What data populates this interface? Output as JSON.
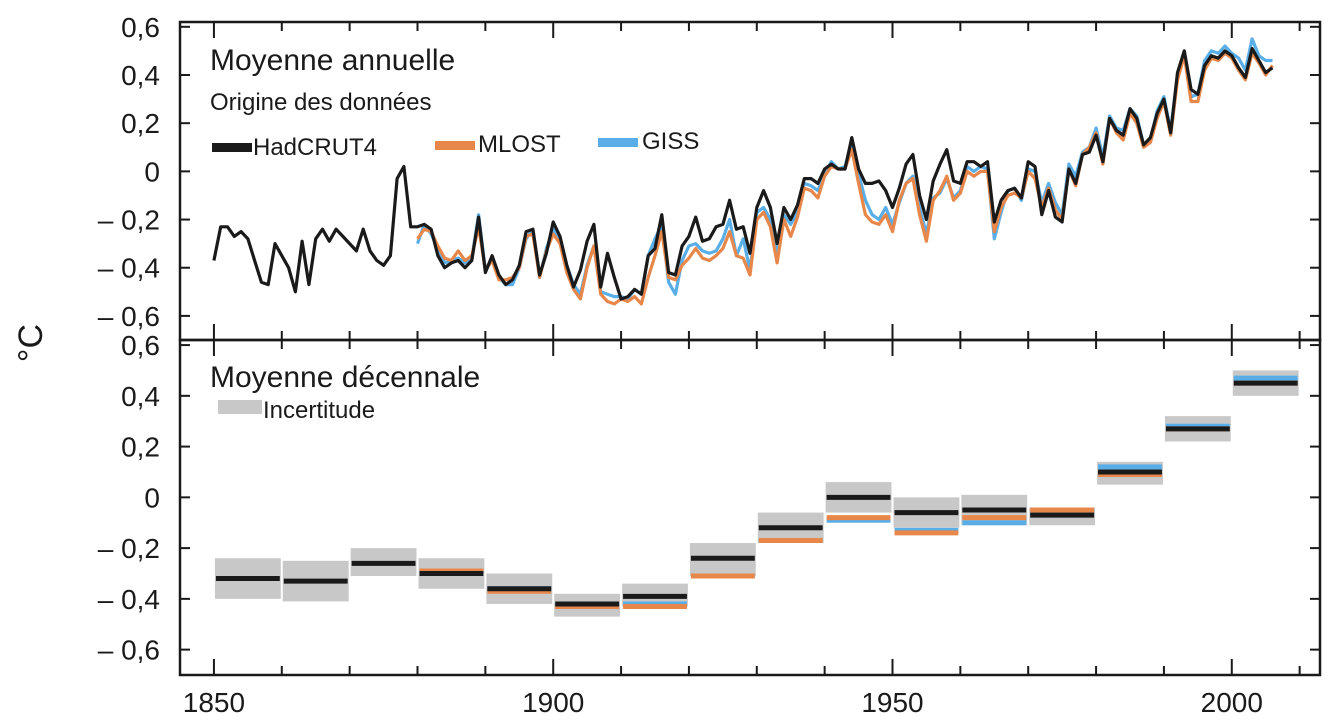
{
  "colors": {
    "hadcrut4": "#1a1a1a",
    "mlost": "#e8874a",
    "giss": "#5aaee8",
    "uncertainty": "#c8c8c8"
  },
  "chart_data": {
    "type": "line",
    "ylabel": "°C",
    "xlim": [
      1845,
      2013
    ],
    "xticks": [
      "1850",
      "1900",
      "1950",
      "2000"
    ],
    "grid": false,
    "panels": [
      {
        "title": "Moyenne annuelle",
        "legend_title": "Origine des données",
        "legend_placement": "top-left",
        "ylim": [
          -0.7,
          0.62
        ],
        "yticks": [
          "0,6",
          "0,4",
          "0,2",
          "0",
          "– 0,2",
          "– 0,4",
          "– 0,6"
        ],
        "series": [
          {
            "name": "HadCRUT4",
            "x_start": 1850,
            "values": [
              -0.37,
              -0.23,
              -0.23,
              -0.27,
              -0.25,
              -0.28,
              -0.37,
              -0.46,
              -0.47,
              -0.3,
              -0.35,
              -0.4,
              -0.5,
              -0.29,
              -0.47,
              -0.28,
              -0.24,
              -0.29,
              -0.24,
              -0.27,
              -0.3,
              -0.33,
              -0.24,
              -0.33,
              -0.37,
              -0.39,
              -0.35,
              -0.03,
              0.02,
              -0.23,
              -0.23,
              -0.22,
              -0.24,
              -0.35,
              -0.4,
              -0.38,
              -0.37,
              -0.4,
              -0.37,
              -0.19,
              -0.42,
              -0.35,
              -0.43,
              -0.47,
              -0.45,
              -0.39,
              -0.25,
              -0.24,
              -0.43,
              -0.34,
              -0.21,
              -0.27,
              -0.39,
              -0.48,
              -0.41,
              -0.29,
              -0.22,
              -0.48,
              -0.34,
              -0.44,
              -0.53,
              -0.52,
              -0.49,
              -0.51,
              -0.35,
              -0.32,
              -0.18,
              -0.42,
              -0.43,
              -0.31,
              -0.27,
              -0.19,
              -0.29,
              -0.28,
              -0.23,
              -0.22,
              -0.12,
              -0.24,
              -0.23,
              -0.34,
              -0.15,
              -0.08,
              -0.15,
              -0.3,
              -0.15,
              -0.2,
              -0.14,
              -0.03,
              -0.03,
              -0.05,
              0.01,
              0.03,
              0.01,
              0.01,
              0.14,
              0.01,
              -0.05,
              -0.05,
              -0.04,
              -0.08,
              -0.15,
              -0.07,
              0.03,
              0.07,
              -0.1,
              -0.2,
              -0.04,
              0.03,
              0.09,
              -0.04,
              -0.05,
              0.04,
              0.04,
              0.02,
              0.04,
              -0.21,
              -0.12,
              -0.08,
              -0.07,
              -0.11,
              0.04,
              0.02,
              -0.18,
              -0.08,
              -0.19,
              -0.21,
              0.01,
              -0.05,
              0.07,
              0.08,
              0.15,
              0.04,
              0.22,
              0.17,
              0.15,
              0.26,
              0.22,
              0.11,
              0.14,
              0.24,
              0.3,
              0.16,
              0.41,
              0.5,
              0.34,
              0.32,
              0.44,
              0.48,
              0.47,
              0.5,
              0.48,
              0.43,
              0.39,
              0.51,
              0.46,
              0.41,
              0.43
            ]
          },
          {
            "name": "MLOST",
            "x_start": 1880,
            "values": [
              -0.28,
              -0.24,
              -0.25,
              -0.31,
              -0.36,
              -0.37,
              -0.33,
              -0.37,
              -0.35,
              -0.23,
              -0.41,
              -0.37,
              -0.45,
              -0.45,
              -0.44,
              -0.4,
              -0.27,
              -0.26,
              -0.44,
              -0.33,
              -0.26,
              -0.3,
              -0.42,
              -0.49,
              -0.53,
              -0.4,
              -0.31,
              -0.51,
              -0.54,
              -0.55,
              -0.53,
              -0.54,
              -0.52,
              -0.55,
              -0.44,
              -0.35,
              -0.25,
              -0.44,
              -0.45,
              -0.39,
              -0.36,
              -0.32,
              -0.36,
              -0.37,
              -0.35,
              -0.32,
              -0.25,
              -0.35,
              -0.36,
              -0.43,
              -0.2,
              -0.17,
              -0.23,
              -0.38,
              -0.2,
              -0.27,
              -0.19,
              -0.07,
              -0.08,
              -0.11,
              -0.02,
              0.02,
              0.01,
              0.01,
              0.09,
              -0.05,
              -0.18,
              -0.21,
              -0.22,
              -0.18,
              -0.25,
              -0.12,
              -0.05,
              -0.03,
              -0.18,
              -0.29,
              -0.12,
              -0.08,
              -0.02,
              -0.12,
              -0.09,
              0.0,
              -0.02,
              0.0,
              0.0,
              -0.25,
              -0.15,
              -0.1,
              -0.09,
              -0.11,
              0.0,
              -0.03,
              -0.15,
              -0.07,
              -0.16,
              -0.2,
              0.01,
              -0.06,
              0.07,
              0.1,
              0.16,
              0.03,
              0.22,
              0.16,
              0.13,
              0.24,
              0.2,
              0.1,
              0.12,
              0.22,
              0.29,
              0.15,
              0.38,
              0.48,
              0.29,
              0.29,
              0.42,
              0.47,
              0.46,
              0.49,
              0.47,
              0.42,
              0.38,
              0.49,
              0.45,
              0.4,
              0.44
            ]
          },
          {
            "name": "GISS",
            "x_start": 1880,
            "values": [
              -0.3,
              -0.22,
              -0.26,
              -0.32,
              -0.38,
              -0.37,
              -0.36,
              -0.38,
              -0.36,
              -0.18,
              -0.41,
              -0.36,
              -0.44,
              -0.47,
              -0.47,
              -0.4,
              -0.28,
              -0.24,
              -0.44,
              -0.32,
              -0.24,
              -0.28,
              -0.39,
              -0.47,
              -0.51,
              -0.39,
              -0.31,
              -0.5,
              -0.51,
              -0.52,
              -0.52,
              -0.53,
              -0.49,
              -0.51,
              -0.35,
              -0.28,
              -0.22,
              -0.46,
              -0.51,
              -0.37,
              -0.31,
              -0.3,
              -0.33,
              -0.34,
              -0.33,
              -0.28,
              -0.2,
              -0.35,
              -0.28,
              -0.41,
              -0.17,
              -0.15,
              -0.2,
              -0.35,
              -0.18,
              -0.22,
              -0.17,
              -0.05,
              -0.06,
              -0.08,
              -0.01,
              0.04,
              0.01,
              0.02,
              0.12,
              -0.01,
              -0.12,
              -0.18,
              -0.2,
              -0.15,
              -0.22,
              -0.13,
              -0.05,
              -0.02,
              -0.15,
              -0.26,
              -0.11,
              -0.09,
              -0.03,
              -0.11,
              -0.08,
              0.02,
              0.0,
              0.02,
              0.01,
              -0.28,
              -0.17,
              -0.08,
              -0.07,
              -0.12,
              0.01,
              0.0,
              -0.13,
              -0.05,
              -0.13,
              -0.18,
              0.03,
              -0.02,
              0.08,
              0.1,
              0.18,
              0.06,
              0.23,
              0.18,
              0.17,
              0.26,
              0.23,
              0.11,
              0.13,
              0.25,
              0.31,
              0.17,
              0.4,
              0.5,
              0.31,
              0.32,
              0.46,
              0.5,
              0.49,
              0.52,
              0.49,
              0.47,
              0.42,
              0.55,
              0.48,
              0.46,
              0.46
            ]
          }
        ]
      },
      {
        "title": "Moyenne décennale",
        "legend_title": "",
        "legend_placement": "top-left",
        "ylim": [
          -0.7,
          0.62
        ],
        "yticks": [
          "0,6",
          "0,4",
          "0,2",
          "0",
          "– 0,2",
          "– 0,4",
          "– 0,6"
        ],
        "uncertainty_label": "Incertitude",
        "decades": [
          1850,
          1860,
          1870,
          1880,
          1890,
          1900,
          1910,
          1920,
          1930,
          1940,
          1950,
          1960,
          1970,
          1980,
          1990,
          2000
        ],
        "series": [
          {
            "name": "HadCRUT4",
            "values": [
              -0.32,
              -0.33,
              -0.26,
              -0.3,
              -0.36,
              -0.42,
              -0.39,
              -0.24,
              -0.12,
              0.0,
              -0.06,
              -0.05,
              -0.07,
              0.1,
              0.27,
              0.45
            ]
          },
          {
            "name": "MLOST",
            "values": [
              null,
              null,
              null,
              -0.29,
              -0.37,
              -0.43,
              -0.43,
              -0.31,
              -0.17,
              -0.08,
              -0.14,
              -0.08,
              -0.05,
              0.09,
              0.27,
              0.45
            ]
          },
          {
            "name": "GISS",
            "values": [
              null,
              null,
              null,
              -0.29,
              -0.36,
              -0.42,
              -0.42,
              -0.31,
              -0.17,
              -0.09,
              -0.13,
              -0.1,
              -0.06,
              0.12,
              0.28,
              0.47
            ]
          },
          {
            "name": "Incertitude",
            "low": [
              -0.4,
              -0.41,
              -0.31,
              -0.36,
              -0.42,
              -0.47,
              -0.43,
              -0.31,
              -0.18,
              -0.06,
              -0.12,
              -0.11,
              -0.11,
              0.05,
              0.22,
              0.4
            ],
            "high": [
              -0.24,
              -0.25,
              -0.2,
              -0.24,
              -0.3,
              -0.38,
              -0.34,
              -0.18,
              -0.06,
              0.06,
              0.0,
              0.01,
              -0.04,
              0.14,
              0.32,
              0.5
            ]
          }
        ]
      }
    ]
  }
}
